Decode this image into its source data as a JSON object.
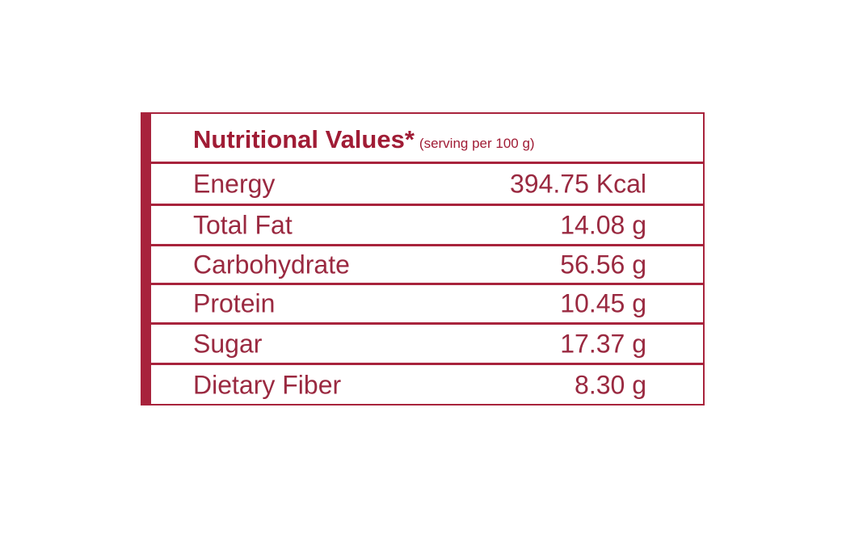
{
  "header": {
    "title": "Nutritional Values*",
    "subtitle": "(serving per 100 g)"
  },
  "table": {
    "rows": [
      [
        "Energy",
        "394.75 Kcal"
      ],
      [
        "Total Fat",
        "14.08 g"
      ],
      [
        "Carbohydrate",
        "56.56 g"
      ],
      [
        "Protein",
        "10.45 g"
      ],
      [
        "Sugar",
        "17.37 g"
      ],
      [
        "Dietary Fiber",
        "8.30 g"
      ]
    ]
  }
}
